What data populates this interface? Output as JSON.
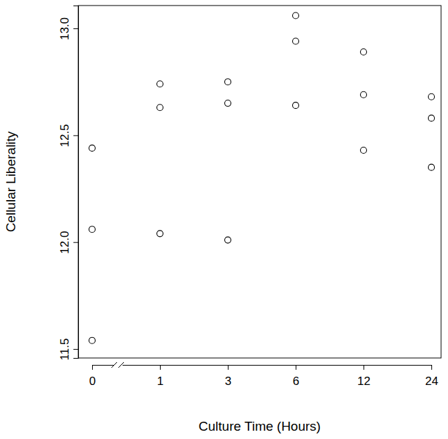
{
  "chart_data": {
    "type": "scatter",
    "x_label": "Culture Time (Hours)",
    "y_label": "Cellular Liberality",
    "categories": [
      "0",
      "1",
      "3",
      "6",
      "12",
      "24"
    ],
    "values": [
      [
        12.44,
        12.06,
        11.54
      ],
      [
        12.74,
        12.63,
        12.04
      ],
      [
        12.75,
        12.65,
        12.01
      ],
      [
        13.06,
        12.94,
        12.64
      ],
      [
        12.89,
        12.69,
        12.43
      ],
      [
        12.68,
        12.58,
        12.35
      ]
    ],
    "color": "#000000",
    "marker": "open-circle",
    "ylim": [
      11.458,
      13.107
    ],
    "yticks": [
      11.5,
      {
        "value": 12.0,
        "label": "12.0"
      },
      12.5,
      {
        "value": 13.0,
        "label": "13.0"
      }
    ],
    "grid": false
  }
}
